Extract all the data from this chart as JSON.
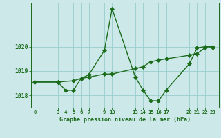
{
  "x_ticks": [
    0,
    3,
    4,
    5,
    6,
    7,
    9,
    10,
    13,
    14,
    15,
    16,
    17,
    20,
    21,
    22,
    23
  ],
  "series1_x": [
    0,
    3,
    4,
    5,
    6,
    7,
    9,
    10,
    13,
    14,
    15,
    16,
    17,
    20,
    21,
    22,
    23
  ],
  "series1_y": [
    1018.55,
    1018.55,
    1018.2,
    1018.22,
    1018.7,
    1018.85,
    1019.85,
    1021.55,
    1018.75,
    1018.22,
    1017.78,
    1017.78,
    1018.22,
    1019.3,
    1019.95,
    1020.0,
    1020.0
  ],
  "series2_x": [
    0,
    3,
    5,
    6,
    7,
    9,
    10,
    13,
    14,
    15,
    16,
    17,
    20,
    21,
    22,
    23
  ],
  "series2_y": [
    1018.55,
    1018.55,
    1018.6,
    1018.7,
    1018.75,
    1018.88,
    1018.88,
    1019.1,
    1019.18,
    1019.38,
    1019.45,
    1019.5,
    1019.65,
    1019.72,
    1019.95,
    1019.97
  ],
  "ylim": [
    1017.5,
    1021.8
  ],
  "yticks": [
    1018,
    1019,
    1020
  ],
  "xlabel": "Graphe pression niveau de la mer (hPa)",
  "line_color": "#1a6b1a",
  "bg_color": "#cce8e8",
  "grid_color": "#99cccc",
  "markersize": 3,
  "linewidth": 1.0
}
